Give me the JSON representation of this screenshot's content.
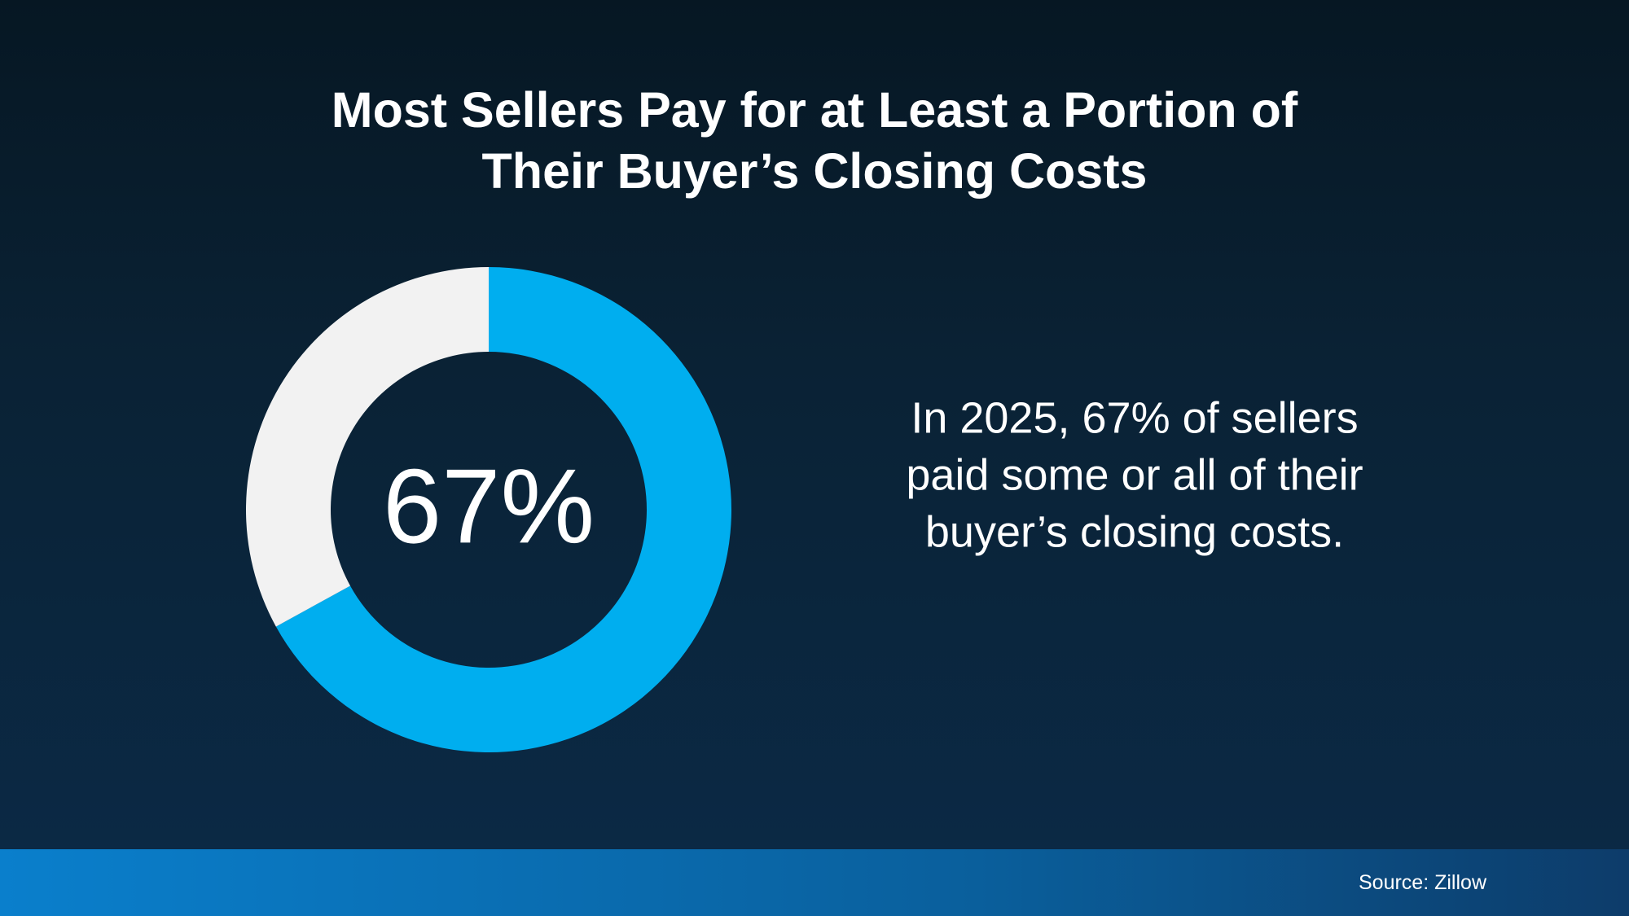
{
  "chart_data": {
    "type": "pie",
    "title": "Most Sellers Pay for at Least a Portion of Their Buyer’s Closing Costs",
    "categories": [
      null,
      null
    ],
    "values": [
      67,
      33
    ],
    "value_labels": [
      "67%",
      null
    ],
    "colors": [
      "#00aeef",
      "#f2f2f2"
    ],
    "donut": true,
    "annotation": [
      "In 2025, 67% of sellers",
      "paid some or all of their",
      "buyer’s closing costs."
    ],
    "source": "Source: Zillow"
  }
}
